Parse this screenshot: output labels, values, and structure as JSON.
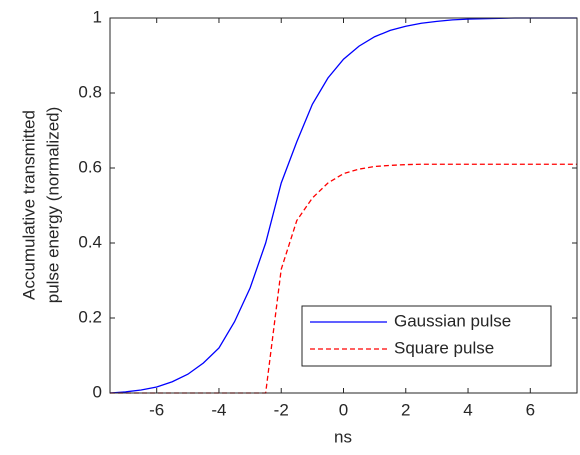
{
  "chart_data": {
    "type": "line",
    "x": [
      -7.5,
      -7,
      -6.5,
      -6,
      -5.5,
      -5,
      -4.5,
      -4,
      -3.5,
      -3,
      -2.5,
      -2,
      -1.5,
      -1,
      -0.5,
      0,
      0.5,
      1,
      1.5,
      2,
      2.5,
      3,
      3.5,
      4,
      4.5,
      5,
      5.5,
      6,
      6.5,
      7,
      7.5
    ],
    "series": [
      {
        "name": "Gaussian pulse",
        "color": "#0000ff",
        "dash": false,
        "values": [
          0,
          0.003,
          0.008,
          0.016,
          0.03,
          0.05,
          0.08,
          0.12,
          0.19,
          0.28,
          0.4,
          0.56,
          0.67,
          0.77,
          0.84,
          0.89,
          0.925,
          0.95,
          0.967,
          0.978,
          0.986,
          0.991,
          0.995,
          0.997,
          0.998,
          0.999,
          1,
          1,
          1,
          1,
          1
        ]
      },
      {
        "name": "Square pulse",
        "color": "#ff0000",
        "dash": true,
        "values": [
          0,
          0,
          0,
          0,
          0,
          0,
          0,
          0,
          0,
          0,
          0,
          0.33,
          0.46,
          0.52,
          0.56,
          0.585,
          0.597,
          0.604,
          0.607,
          0.609,
          0.61,
          0.61,
          0.61,
          0.61,
          0.61,
          0.61,
          0.61,
          0.61,
          0.61,
          0.61,
          0.61
        ]
      }
    ],
    "xlabel": "ns",
    "ylabel": [
      "Accumulative transmitted",
      "pulse energy (normalized)"
    ],
    "xlim": [
      -7.5,
      7.5
    ],
    "ylim": [
      0,
      1
    ],
    "xticks": [
      -6,
      -4,
      -2,
      0,
      2,
      4,
      6
    ],
    "yticks": [
      0,
      0.2,
      0.4,
      0.6,
      0.8,
      1
    ],
    "legend": "lower right"
  }
}
